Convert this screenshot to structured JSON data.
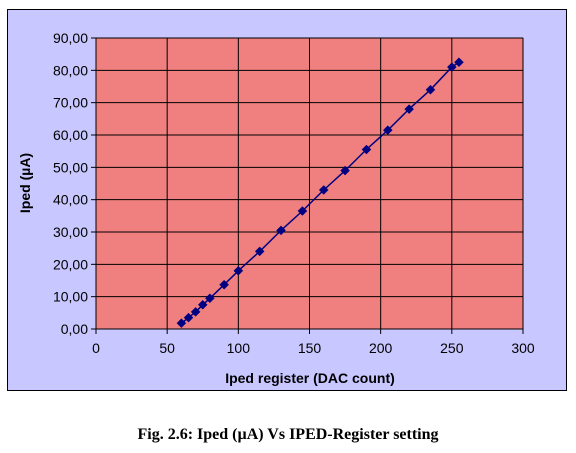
{
  "chart_data": {
    "type": "scatter",
    "xlabel": "Iped register (DAC count)",
    "ylabel": "Iped (µA)",
    "xlim": [
      0,
      300
    ],
    "ylim": [
      0,
      90
    ],
    "x_ticks": [
      0,
      50,
      100,
      150,
      200,
      250,
      300
    ],
    "y_ticks": [
      "0,00",
      "10,00",
      "20,00",
      "30,00",
      "40,00",
      "50,00",
      "60,00",
      "70,00",
      "80,00",
      "90,00"
    ],
    "grid": true,
    "legend": "none",
    "series": [
      {
        "x": [
          60,
          65,
          70,
          75,
          80,
          90,
          100,
          115,
          130,
          145,
          160,
          175,
          190,
          205,
          220,
          235,
          250,
          255
        ],
        "y": [
          1.8,
          3.5,
          5.3,
          7.5,
          9.5,
          13.7,
          18.0,
          24.0,
          30.5,
          36.5,
          43.0,
          49.0,
          55.5,
          61.5,
          68.0,
          74.0,
          81.0,
          82.5
        ],
        "marker": "diamond",
        "line": true
      }
    ],
    "colors": {
      "plot_background": "#f08080",
      "frame_background": "#c9c7ff",
      "series": "#000080",
      "grid": "#000000"
    }
  },
  "caption": "Fig. 2.6: Iped (µA) Vs IPED-Register setting"
}
